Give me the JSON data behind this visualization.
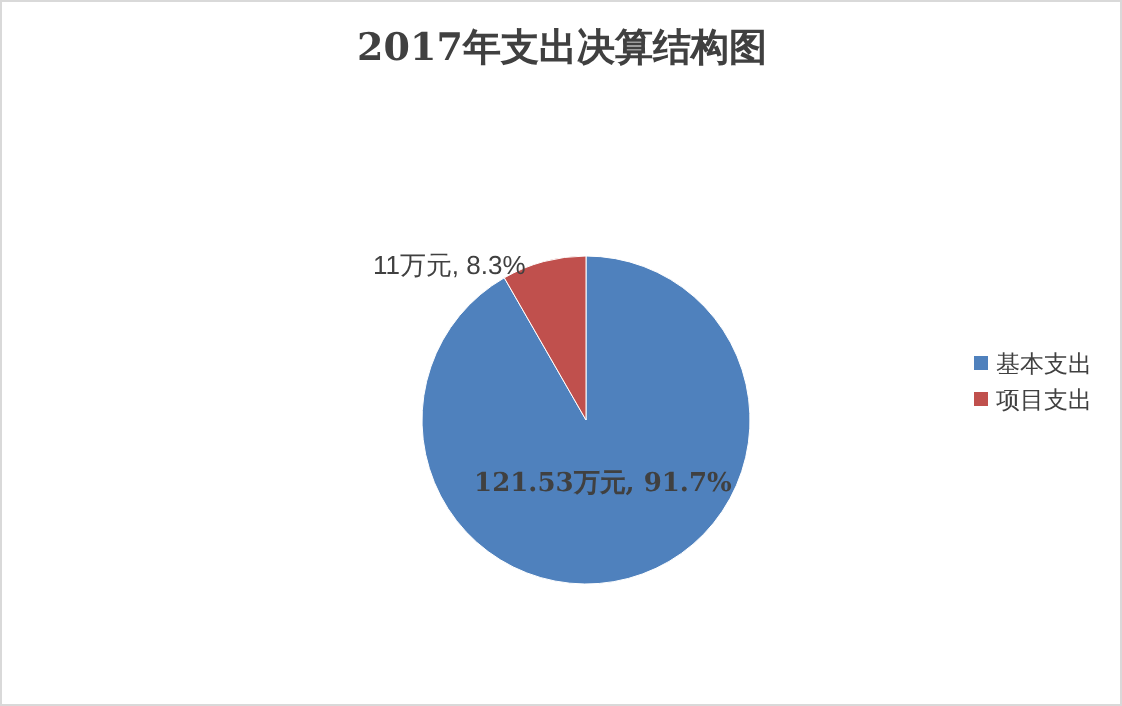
{
  "chart_data": {
    "type": "pie",
    "title": "2017年支出决算结构图",
    "categories": [
      "基本支出",
      "项目支出"
    ],
    "values": [
      121.53,
      11
    ],
    "colors": [
      "#4f81bd",
      "#c0504d"
    ],
    "value_labels": [
      "121.53万元, 91.7%",
      "11万元, 8.3%"
    ],
    "legend": "right"
  }
}
